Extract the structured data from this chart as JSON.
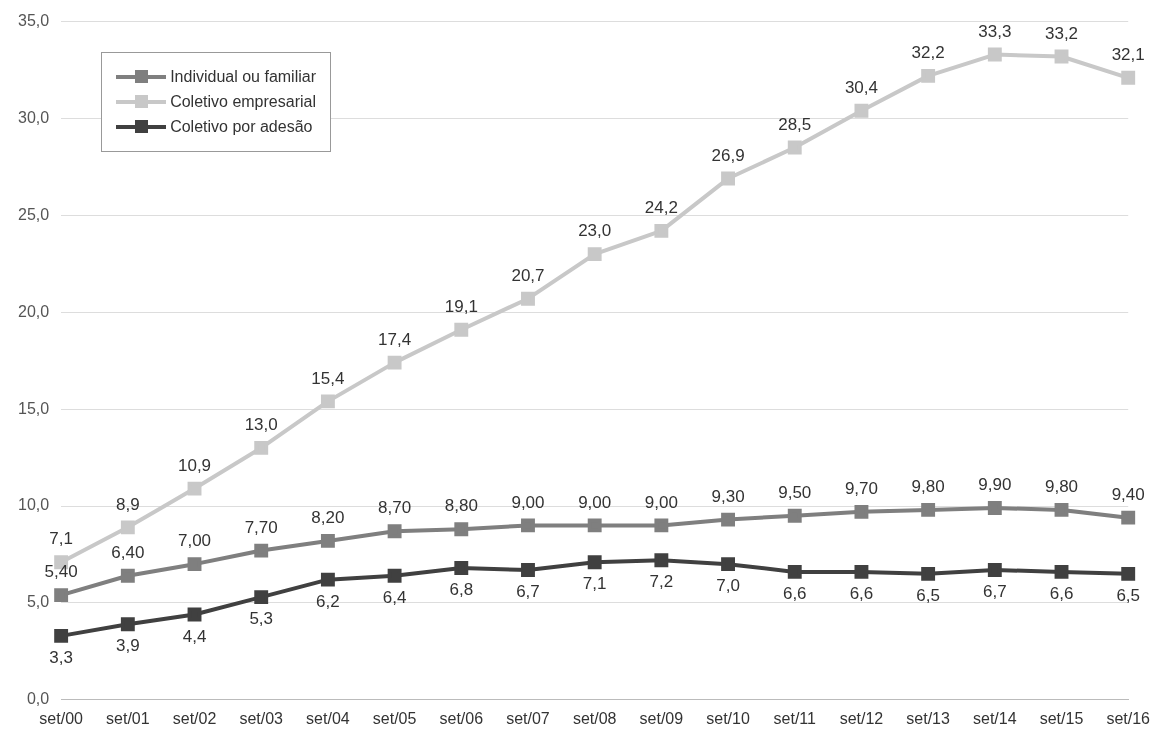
{
  "chart_data": {
    "type": "line",
    "categories": [
      "set/00",
      "set/01",
      "set/02",
      "set/03",
      "set/04",
      "set/05",
      "set/06",
      "set/07",
      "set/08",
      "set/09",
      "set/10",
      "set/11",
      "set/12",
      "set/13",
      "set/14",
      "set/15",
      "set/16"
    ],
    "series": [
      {
        "name": "Individual ou familiar",
        "color": "#7f7f7f",
        "values": [
          5.4,
          6.4,
          7.0,
          7.7,
          8.2,
          8.7,
          8.8,
          9.0,
          9.0,
          9.0,
          9.3,
          9.5,
          9.7,
          9.8,
          9.9,
          9.8,
          9.4
        ],
        "value_labels": [
          "5,40",
          "6,40",
          "7,00",
          "7,70",
          "8,20",
          "8,70",
          "8,80",
          "9,00",
          "9,00",
          "9,00",
          "9,30",
          "9,50",
          "9,70",
          "9,80",
          "9,90",
          "9,80",
          "9,40"
        ]
      },
      {
        "name": "Coletivo empresarial",
        "color": "#c8c8c8",
        "values": [
          7.1,
          8.9,
          10.9,
          13.0,
          15.4,
          17.4,
          19.1,
          20.7,
          23.0,
          24.2,
          26.9,
          28.5,
          30.4,
          32.2,
          33.3,
          33.2,
          32.1
        ],
        "value_labels": [
          "7,1",
          "8,9",
          "10,9",
          "13,0",
          "15,4",
          "17,4",
          "19,1",
          "20,7",
          "23,0",
          "24,2",
          "26,9",
          "28,5",
          "30,4",
          "32,2",
          "33,3",
          "33,2",
          "32,1"
        ]
      },
      {
        "name": "Coletivo por adesão",
        "color": "#404040",
        "values": [
          3.3,
          3.9,
          4.4,
          5.3,
          6.2,
          6.4,
          6.8,
          6.7,
          7.1,
          7.2,
          7.0,
          6.6,
          6.6,
          6.5,
          6.7,
          6.6,
          6.5
        ],
        "value_labels": [
          "3,3",
          "3,9",
          "4,4",
          "5,3",
          "6,2",
          "6,4",
          "6,8",
          "6,7",
          "7,1",
          "7,2",
          "7,0",
          "6,6",
          "6,6",
          "6,5",
          "6,7",
          "6,6",
          "6,5"
        ]
      }
    ],
    "ylim": [
      0,
      35
    ],
    "yticks": [
      {
        "value": 0,
        "label": "0,0"
      },
      {
        "value": 5,
        "label": "5,0"
      },
      {
        "value": 10,
        "label": "10,0"
      },
      {
        "value": 15,
        "label": "15,0"
      },
      {
        "value": 20,
        "label": "20,0"
      },
      {
        "value": 25,
        "label": "25,0"
      },
      {
        "value": 30,
        "label": "30,0"
      },
      {
        "value": 35,
        "label": "35,0"
      }
    ],
    "grid": "y",
    "legend": "top left",
    "marker": "square",
    "line_style": "solid"
  }
}
